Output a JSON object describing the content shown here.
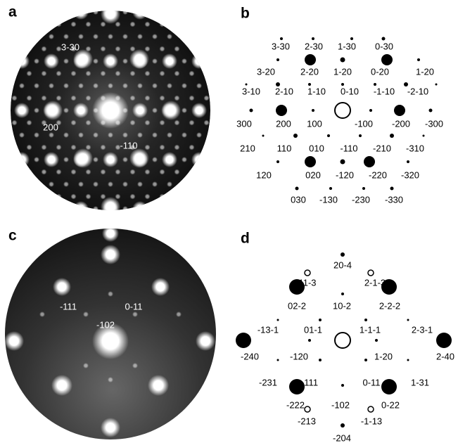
{
  "panels": [
    {
      "label": "a",
      "labels": [
        "3-30",
        "200",
        "-110"
      ]
    },
    {
      "label": "b",
      "labels": [
        "3-30",
        "2-30",
        "1-30",
        "0-30",
        "3-20",
        "2-20",
        "1-20",
        "0-20",
        "1-20",
        "3-10",
        "2-10",
        "1-10",
        "0-10",
        "-1-10",
        "-2-10",
        "300",
        "200",
        "100",
        "-100",
        "-200",
        "-300",
        "210",
        "110",
        "010",
        "-110",
        "-210",
        "-310",
        "120",
        "020",
        "-120",
        "-220",
        "-320",
        "030",
        "-130",
        "-230",
        "-330"
      ]
    },
    {
      "label": "c",
      "labels": [
        "-111",
        "0-11",
        "-102"
      ]
    },
    {
      "label": "d",
      "labels": [
        "20-4",
        "11-3",
        "2-1-3",
        "02-2",
        "10-2",
        "2-2-2",
        "-13-1",
        "01-1",
        "1-1-1",
        "2-3-1",
        "-240",
        "-120",
        "1-20",
        "2-40",
        "-231",
        "-111",
        "0-11",
        "1-31",
        "-222",
        "-102",
        "0-22",
        "-213",
        "-1-13",
        "-204"
      ]
    }
  ]
}
